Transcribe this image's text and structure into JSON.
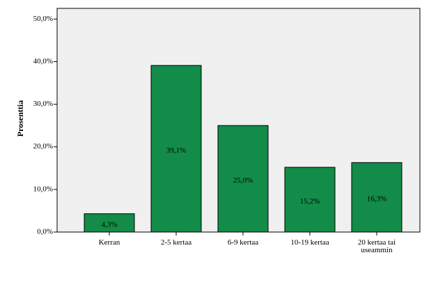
{
  "chart_data": {
    "type": "bar",
    "y_label": "Prosenttia",
    "categories": [
      "Kerran",
      "2-5 kertaa",
      "6-9 kertaa",
      "10-19 kertaa",
      "20 kertaa tai useammin"
    ],
    "values": [
      4.3,
      39.1,
      25.0,
      15.2,
      16.3
    ],
    "value_labels": [
      "4,3%",
      "39,1%",
      "25,0%",
      "15,2%",
      "16,3%"
    ],
    "color": "#128c48",
    "ylim": [
      0,
      52.5
    ],
    "yticks": [
      {
        "value": 0,
        "label": "0,0%"
      },
      {
        "value": 10,
        "label": "10,0%"
      },
      {
        "value": 20,
        "label": "20,0%"
      },
      {
        "value": 30,
        "label": "30,0%"
      },
      {
        "value": 40,
        "label": "40,0%"
      },
      {
        "value": 50,
        "label": "50,0%"
      }
    ]
  }
}
